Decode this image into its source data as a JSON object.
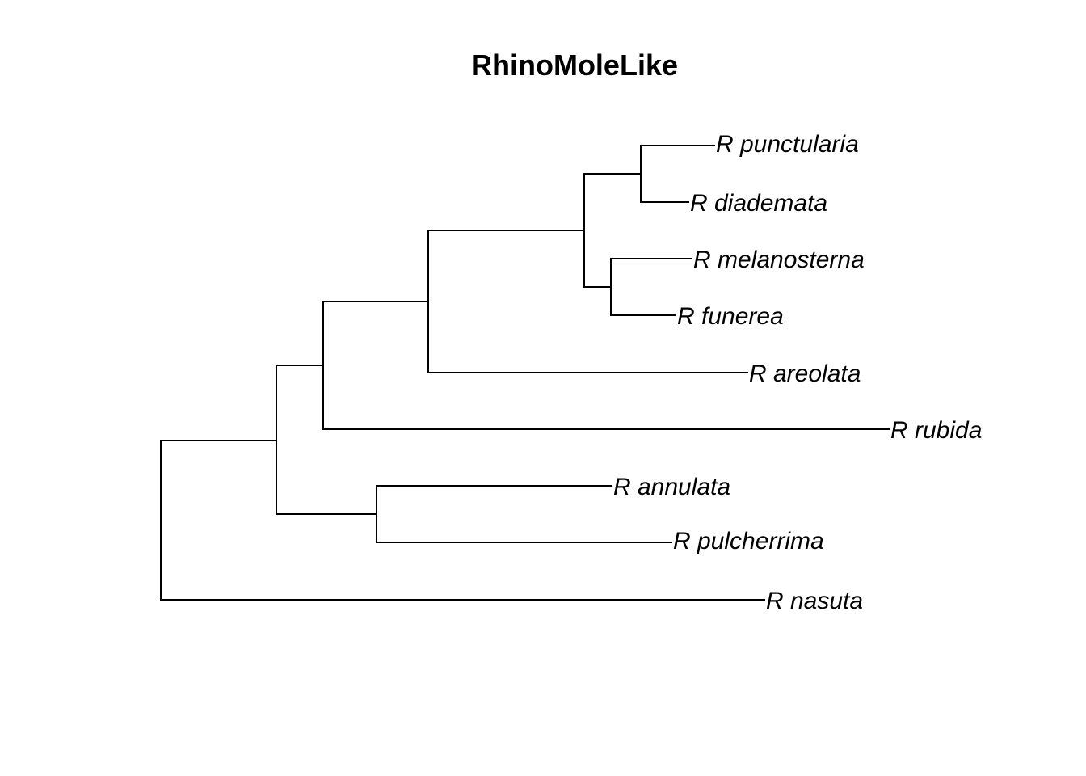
{
  "title": "RhinoMoleLike",
  "tree": {
    "type": "phylogram",
    "direction": "rightwards",
    "line_color": "#000000",
    "tips": [
      "R punctularia",
      "R diademata",
      "R melanosterna",
      "R funerea",
      "R areolata",
      "R rubida",
      "R annulata",
      "R pulcherrima",
      "R nasuta"
    ],
    "topology": "((((((R punctularia,R diademata),(R melanosterna,R funerea)),R areolata),R rubida),(R annulata,R pulcherrima)),R nasuta)"
  }
}
